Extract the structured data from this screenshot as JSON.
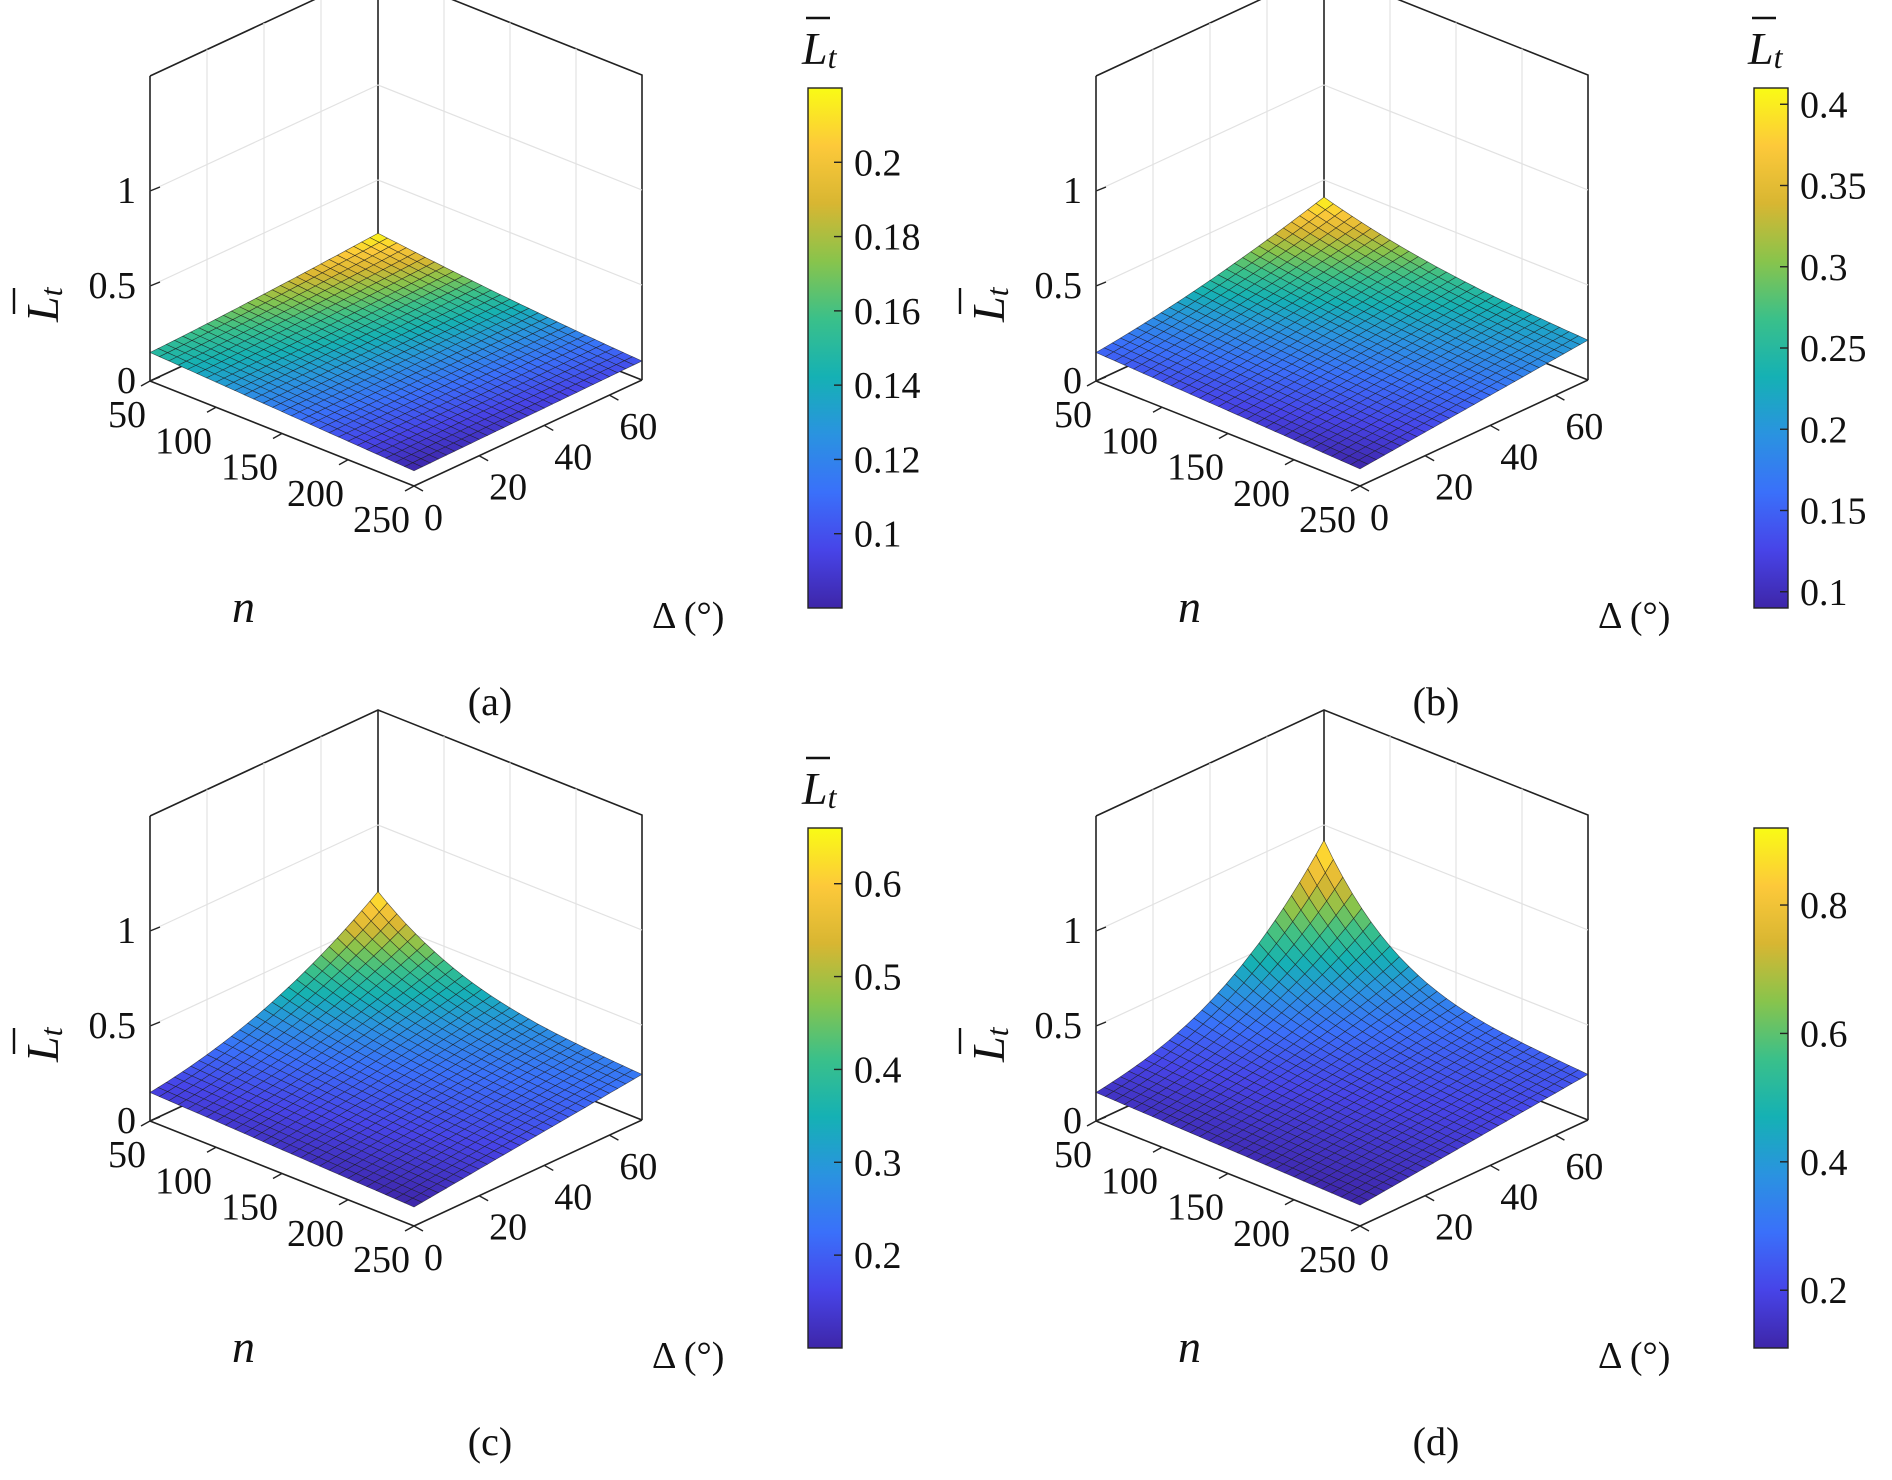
{
  "figure": {
    "z_label_main": "L",
    "z_label_sub": "t",
    "x_label": "n",
    "y_label": "Δ (°)"
  },
  "colormap": [
    "#3e26a8",
    "#4744e8",
    "#3a70fa",
    "#2a93e0",
    "#15b1b4",
    "#3ac08a",
    "#88c44c",
    "#d8b632",
    "#fdc93a",
    "#f9fb15"
  ],
  "chart_data": [
    {
      "type": "surface",
      "caption": "(a)",
      "colorbar_title": "L t",
      "x": [
        50,
        250
      ],
      "x_ticks": [
        "50",
        "100",
        "150",
        "200",
        "250"
      ],
      "y": [
        0,
        70
      ],
      "y_ticks": [
        "0",
        "20",
        "40",
        "60"
      ],
      "zlim": [
        0,
        1
      ],
      "z_ticks": [
        "0",
        "0.5",
        "1"
      ],
      "z_at_corners": {
        "n50_d0": 0.15,
        "n250_d0": 0.08,
        "n50_d70": 0.22,
        "n250_d70": 0.1
      },
      "z_min": 0.08,
      "z_max": 0.22,
      "curvature": 1.0,
      "colorbar_ticks": [
        "0.1",
        "0.12",
        "0.14",
        "0.16",
        "0.18",
        "0.2"
      ]
    },
    {
      "type": "surface",
      "caption": "(b)",
      "colorbar_title": "L t",
      "x": [
        50,
        250
      ],
      "x_ticks": [
        "50",
        "100",
        "150",
        "200",
        "250"
      ],
      "y": [
        0,
        70
      ],
      "y_ticks": [
        "0",
        "20",
        "40",
        "60"
      ],
      "zlim": [
        0,
        1
      ],
      "z_ticks": [
        "0",
        "0.5",
        "1"
      ],
      "z_at_corners": {
        "n50_d0": 0.15,
        "n250_d0": 0.09,
        "n50_d70": 0.41,
        "n250_d70": 0.21
      },
      "z_min": 0.09,
      "z_max": 0.41,
      "curvature": 1.8,
      "colorbar_ticks": [
        "0.1",
        "0.15",
        "0.2",
        "0.25",
        "0.3",
        "0.35",
        "0.4"
      ]
    },
    {
      "type": "surface",
      "caption": "(c)",
      "colorbar_title": "L t",
      "x": [
        50,
        250
      ],
      "x_ticks": [
        "50",
        "100",
        "150",
        "200",
        "250"
      ],
      "y": [
        0,
        70
      ],
      "y_ticks": [
        "0",
        "20",
        "40",
        "60"
      ],
      "zlim": [
        0,
        1
      ],
      "z_ticks": [
        "0",
        "0.5",
        "1"
      ],
      "z_at_corners": {
        "n50_d0": 0.15,
        "n250_d0": 0.1,
        "n50_d70": 0.65,
        "n250_d70": 0.24
      },
      "z_min": 0.1,
      "z_max": 0.66,
      "curvature": 2.4,
      "colorbar_ticks": [
        "0.2",
        "0.3",
        "0.4",
        "0.5",
        "0.6"
      ]
    },
    {
      "type": "surface",
      "caption": "(d)",
      "colorbar_title": "",
      "x": [
        50,
        250
      ],
      "x_ticks": [
        "50",
        "100",
        "150",
        "200",
        "250"
      ],
      "y": [
        0,
        70
      ],
      "y_ticks": [
        "0",
        "20",
        "40",
        "60"
      ],
      "zlim": [
        0,
        1
      ],
      "z_ticks": [
        "0",
        "0.5",
        "1"
      ],
      "z_at_corners": {
        "n50_d0": 0.15,
        "n250_d0": 0.11,
        "n50_d70": 0.92,
        "n250_d70": 0.24
      },
      "z_min": 0.11,
      "z_max": 0.92,
      "curvature": 3.0,
      "colorbar_ticks": [
        "0.2",
        "0.4",
        "0.6",
        "0.8"
      ]
    }
  ]
}
